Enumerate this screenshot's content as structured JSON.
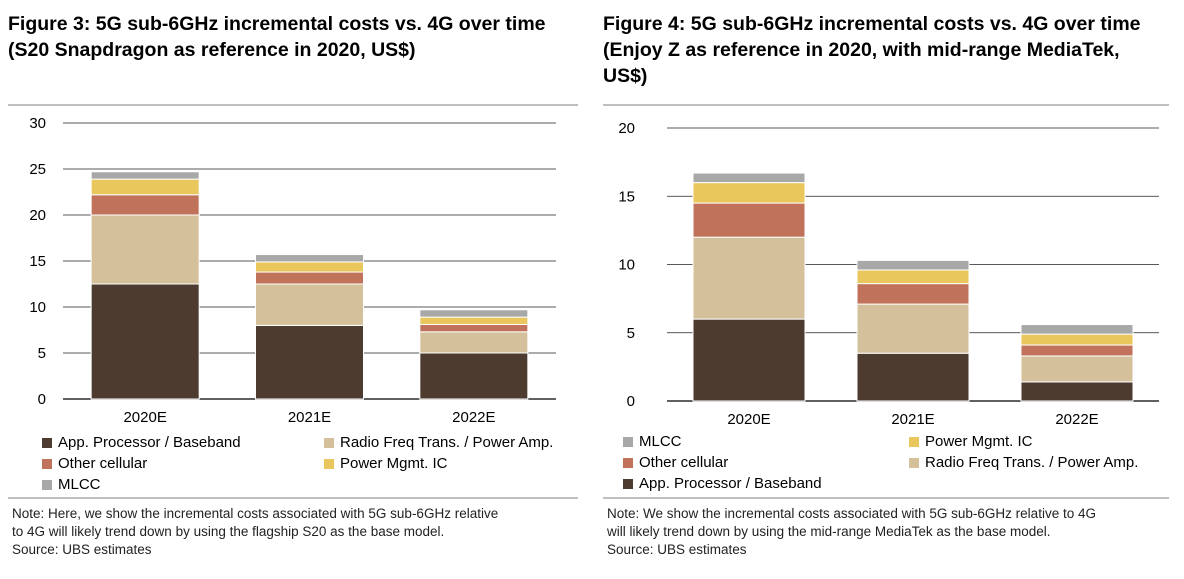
{
  "figures": [
    {
      "title_lines": [
        "Figure 3: 5G sub-6GHz incremental costs vs. 4G over time",
        "(S20 Snapdragon as reference in 2020, US$)"
      ],
      "note_lines": [
        "Note: Here, we show the incremental costs associated with 5G sub-6GHz relative",
        "to 4G will likely trend down by using the flagship S20 as the base model."
      ],
      "source": "Source:  UBS estimates",
      "legend": [
        {
          "label": "App. Processor / Baseband",
          "color": "#4e3b30"
        },
        {
          "label": "Radio Freq Trans. / Power Amp.",
          "color": "#d4c19c"
        },
        {
          "label": "Other cellular",
          "color": "#c0735a"
        },
        {
          "label": "Power Mgmt. IC",
          "color": "#e9c75d"
        },
        {
          "label": "MLCC",
          "color": "#a8a8a8"
        }
      ]
    },
    {
      "title_lines": [
        "Figure 4: 5G sub-6GHz incremental costs vs. 4G over time",
        "(Enjoy Z as reference in 2020, with mid-range MediaTek,",
        "US$)"
      ],
      "note_lines": [
        "Note: We show the incremental costs associated with 5G sub-6GHz relative to 4G",
        "will likely trend down by using the mid-range MediaTek as the base model."
      ],
      "source": "Source:  UBS estimates",
      "legend": [
        {
          "label": "MLCC",
          "color": "#a8a8a8"
        },
        {
          "label": "Power Mgmt. IC",
          "color": "#e9c75d"
        },
        {
          "label": "Other cellular",
          "color": "#c0735a"
        },
        {
          "label": "Radio Freq Trans. / Power Amp.",
          "color": "#d4c19c"
        },
        {
          "label": "App. Processor / Baseband",
          "color": "#4e3b30"
        }
      ]
    }
  ],
  "chart_data": [
    {
      "type": "bar",
      "stacked": true,
      "title": "Figure 3: 5G sub-6GHz incremental costs vs. 4G over time (S20 Snapdragon as reference in 2020, US$)",
      "categories": [
        "2020E",
        "2021E",
        "2022E"
      ],
      "ylim": [
        0,
        30
      ],
      "yticks": [
        0,
        5,
        10,
        15,
        20,
        25,
        30
      ],
      "grid": true,
      "series": [
        {
          "name": "App. Processor / Baseband",
          "color": "#4e3b30",
          "values": [
            12.5,
            8.0,
            5.0
          ]
        },
        {
          "name": "Radio Freq Trans. / Power Amp.",
          "color": "#d4c19c",
          "values": [
            7.5,
            4.5,
            2.3
          ]
        },
        {
          "name": "Other cellular",
          "color": "#c0735a",
          "values": [
            2.2,
            1.3,
            0.8
          ]
        },
        {
          "name": "Power Mgmt. IC",
          "color": "#e9c75d",
          "values": [
            1.7,
            1.1,
            0.8
          ]
        },
        {
          "name": "MLCC",
          "color": "#a8a8a8",
          "values": [
            0.8,
            0.8,
            0.8
          ]
        }
      ]
    },
    {
      "type": "bar",
      "stacked": true,
      "title": "Figure 4: 5G sub-6GHz incremental costs vs. 4G over time (Enjoy Z as reference in 2020, with mid-range MediaTek, US$)",
      "categories": [
        "2020E",
        "2021E",
        "2022E"
      ],
      "ylim": [
        0,
        20
      ],
      "yticks": [
        0,
        5,
        10,
        15,
        20
      ],
      "grid": true,
      "series": [
        {
          "name": "App. Processor / Baseband",
          "color": "#4e3b30",
          "values": [
            6.0,
            3.5,
            1.4
          ]
        },
        {
          "name": "Radio Freq Trans. / Power Amp.",
          "color": "#d4c19c",
          "values": [
            6.0,
            3.6,
            1.9
          ]
        },
        {
          "name": "Other cellular",
          "color": "#c0735a",
          "values": [
            2.5,
            1.5,
            0.8
          ]
        },
        {
          "name": "Power Mgmt. IC",
          "color": "#e9c75d",
          "values": [
            1.5,
            1.0,
            0.8
          ]
        },
        {
          "name": "MLCC",
          "color": "#a8a8a8",
          "values": [
            0.7,
            0.7,
            0.7
          ]
        }
      ]
    }
  ]
}
